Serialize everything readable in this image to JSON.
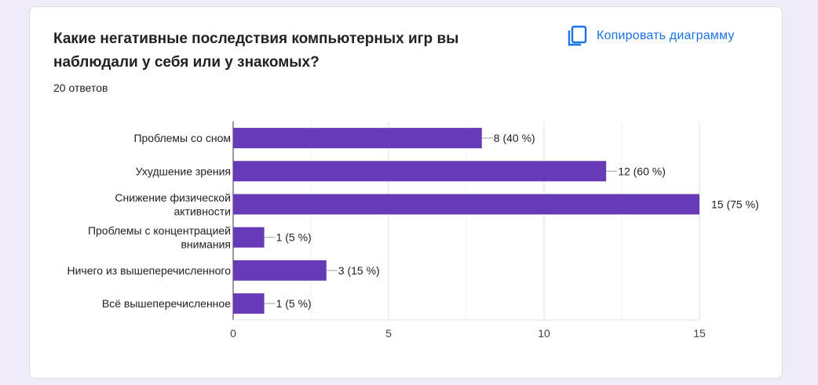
{
  "question": {
    "title": "Какие негативные последствия компьютерных игр вы наблюдали у себя или у знакомых?",
    "responses_label": "20 ответов"
  },
  "actions": {
    "copy_label": "Копировать диаграмму",
    "copy_icon": "copy-icon"
  },
  "colors": {
    "bar": "#673ab7",
    "accent": "#1a73e8",
    "background": "#f0ebf8"
  },
  "chart_data": {
    "type": "bar",
    "orientation": "horizontal",
    "categories": [
      [
        "Проблемы со сном"
      ],
      [
        "Ухудшение зрения"
      ],
      [
        "Снижение физической",
        "активности"
      ],
      [
        "Проблемы с концентрацией",
        "внимания"
      ],
      [
        "Ничего из вышеперечисленного"
      ],
      [
        "Всё вышеперечисленное"
      ]
    ],
    "values": [
      8,
      12,
      15,
      1,
      3,
      1
    ],
    "data_labels": [
      "8 (40 %)",
      "12 (60 %)",
      "15 (75 %)",
      "1 (5 %)",
      "3 (15 %)",
      "1 (5 %)"
    ],
    "xlim": [
      0,
      15
    ],
    "xticks": [
      0,
      5,
      10,
      15
    ],
    "grid": true
  }
}
